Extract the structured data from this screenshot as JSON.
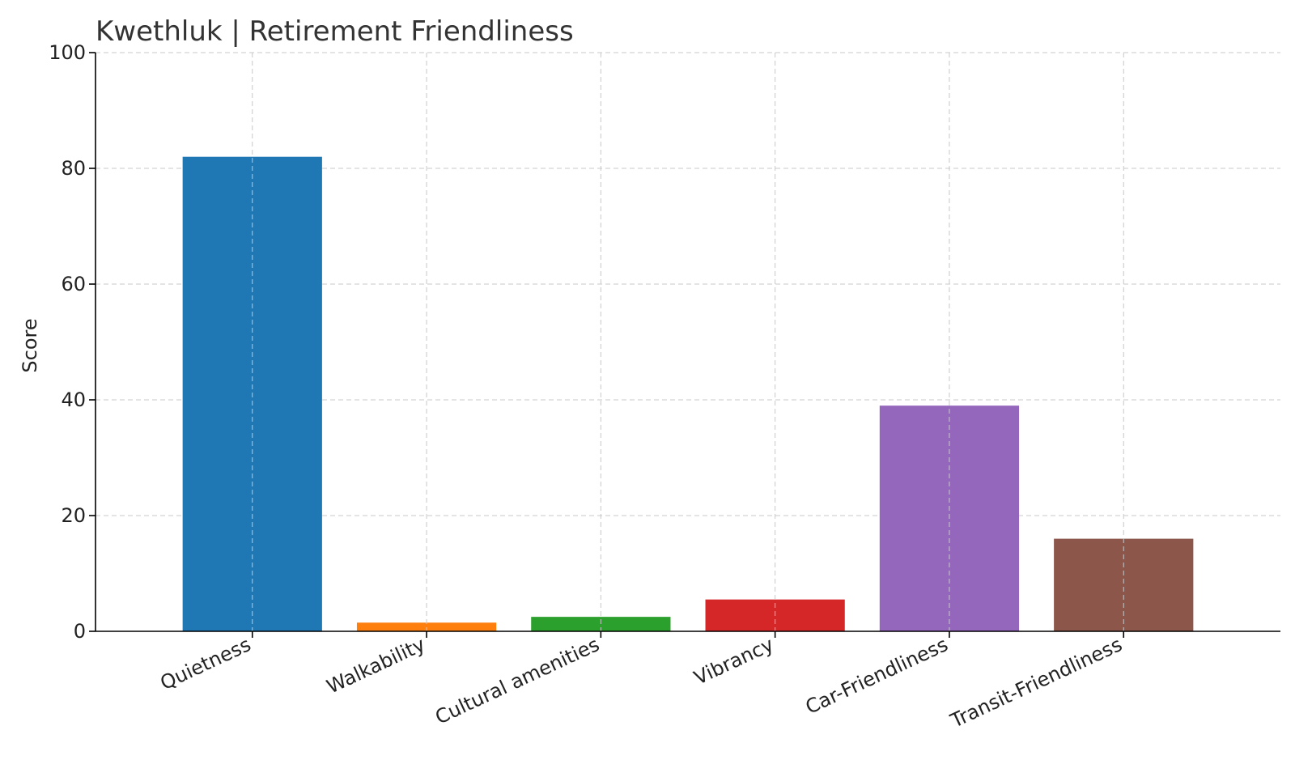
{
  "chart_data": {
    "type": "bar",
    "title": "Kwethluk | Retirement Friendliness",
    "xlabel": "",
    "ylabel": "Score",
    "ylim": [
      0,
      100
    ],
    "yticks": [
      0,
      20,
      40,
      60,
      80,
      100
    ],
    "grid": true,
    "categories": [
      "Quietness",
      "Walkability",
      "Cultural amenities",
      "Vibrancy",
      "Car-Friendliness",
      "Transit-Friendliness"
    ],
    "values": [
      82,
      1.5,
      2.5,
      5.5,
      39,
      16
    ],
    "colors": [
      "#1f77b4",
      "#ff7f0e",
      "#2ca02c",
      "#d62728",
      "#9467bd",
      "#8c564b"
    ]
  }
}
